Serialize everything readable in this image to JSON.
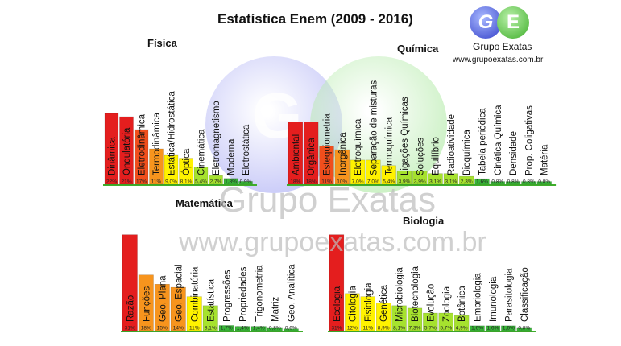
{
  "title": "Estatística Enem (2009 - 2016)",
  "logo": {
    "g": "G",
    "e": "E",
    "name": "Grupo Exatas",
    "url": "www.grupoexatas.com.br"
  },
  "watermark": {
    "ball_letter": "G",
    "name": "Grupo Exatas",
    "url": "www.grupoexatas.com.br"
  },
  "colors": {
    "red": "#e41e1e",
    "orange_red": "#f04e1c",
    "orange": "#f7941d",
    "yellow": "#fff200",
    "light_green": "#a6e22e",
    "green": "#38b638",
    "axis": "#3fae2b"
  },
  "chart_data": [
    {
      "type": "bar",
      "title": "Física",
      "categories": [
        "Dinâmica",
        "Ondulatória",
        "Eletrodinâmica",
        "Termodinâmica",
        "Estática/Hidrostática",
        "Óptica",
        "Cinemática",
        "Eletromagnetismo",
        "Moderna",
        "Eletrostática"
      ],
      "values": [
        22,
        21,
        17,
        11,
        9.0,
        8.1,
        5.4,
        2.7,
        1.8,
        0.9
      ],
      "labels": [
        "22%",
        "21%",
        "17%",
        "11%",
        "9,0%",
        "8,1%",
        "5,4%",
        "2,7%",
        "1,8%",
        "0,9%"
      ]
    },
    {
      "type": "bar",
      "title": "Química",
      "categories": [
        "Ambiental",
        "Orgânica",
        "Estequiometria",
        "Inorgânica",
        "Eletroquímica",
        "Separação de misturas",
        "Termoquímica",
        "Ligações Químicas",
        "Soluções",
        "Equilíbrio",
        "Radioatividade",
        "Bioquímica",
        "Tabela periódica",
        "Cinética Química",
        "Densidade",
        "Prop. Coligativas",
        "Matéria"
      ],
      "values": [
        18,
        18,
        11,
        10,
        7.0,
        7.0,
        5.4,
        3.9,
        3.9,
        3.1,
        3.1,
        2.3,
        1.6,
        0.8,
        0.8,
        0.8,
        0.8
      ],
      "labels": [
        "18%",
        "18%",
        "11%",
        "10%",
        "7,0%",
        "7,0%",
        "5,4%",
        "3,9%",
        "3,9%",
        "3,1%",
        "3,1%",
        "2,3%",
        "1,6%",
        "0,8%",
        "0,8%",
        "0,8%",
        "0,8%"
      ]
    },
    {
      "type": "bar",
      "title": "Matemática",
      "categories": [
        "Razão",
        "Funções",
        "Geo. Plana",
        "Geo. Espacial",
        "Combinatória",
        "Estatística",
        "Progressões",
        "Propriedades",
        "Trigonometria",
        "Matriz",
        "Geo. Analítica"
      ],
      "values": [
        31,
        18,
        15,
        14,
        11,
        8.1,
        1.7,
        1.4,
        1.4,
        0.8,
        0.6
      ],
      "labels": [
        "31%",
        "18%",
        "15%",
        "14%",
        "11%",
        "8,1%",
        "1,7%",
        "1,4%",
        "1,4%",
        "0,8%",
        "0,6%"
      ]
    },
    {
      "type": "bar",
      "title": "Biologia",
      "categories": [
        "Ecologia",
        "Citologia",
        "Fisiologia",
        "Genética",
        "Microbiologia",
        "Biotecnologia",
        "Evolução",
        "Zoologia",
        "Botânica",
        "Embriologia",
        "Imunologia",
        "Parasitologia",
        "Classificação"
      ],
      "values": [
        31,
        12,
        11,
        8.9,
        8.1,
        7.3,
        5.7,
        5.7,
        4.9,
        1.6,
        1.6,
        1.6,
        0.8
      ],
      "labels": [
        "31%",
        "12%",
        "11%",
        "8,9%",
        "8,1%",
        "7,3%",
        "5,7%",
        "5,7%",
        "4,9%",
        "1,6%",
        "1,6%",
        "1,6%",
        "0,8%"
      ]
    }
  ]
}
